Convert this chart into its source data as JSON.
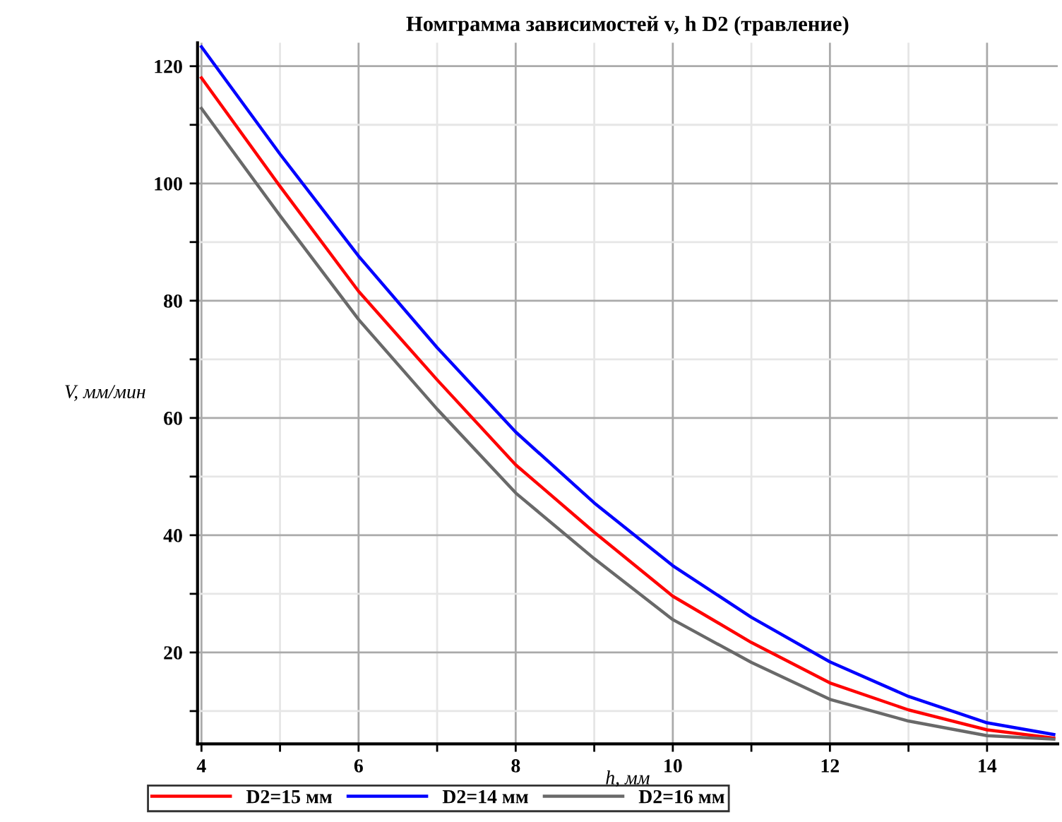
{
  "chart_data": {
    "type": "line",
    "title": "Номграмма зависимостей v, h D2 (травление)",
    "xlabel": "h, мм",
    "ylabel": "V, мм/мин",
    "x": [
      4,
      5,
      6,
      7,
      8,
      9,
      10,
      11,
      12,
      13,
      14,
      14.85
    ],
    "series": [
      {
        "name": "D2=15 мм",
        "color": "#ff0000",
        "values": [
          118,
          99.5,
          81.6,
          66.5,
          52,
          40.5,
          29.6,
          21.7,
          14.8,
          10.2,
          6.8,
          5.4
        ]
      },
      {
        "name": "D2=14 мм",
        "color": "#0000ff",
        "values": [
          123.3,
          105,
          87.6,
          72,
          57.6,
          45.5,
          34.8,
          26,
          18.4,
          12.5,
          8.0,
          6.0
        ]
      },
      {
        "name": "D2=16 мм",
        "color": "#696969",
        "values": [
          112.8,
          94.5,
          76.8,
          61.5,
          47.2,
          36,
          25.6,
          18.3,
          12.0,
          8.3,
          5.8,
          5.2
        ]
      }
    ],
    "xlim": [
      3.95,
      14.9
    ],
    "ylim": [
      4.4,
      124
    ],
    "xticks": [
      4,
      {
        "value": 5,
        "label": null
      },
      6,
      {
        "value": 7,
        "label": null
      },
      8,
      {
        "value": 9,
        "label": null
      },
      10,
      {
        "value": 11,
        "label": null
      },
      12,
      {
        "value": 13,
        "label": null
      },
      14
    ],
    "yticks": [
      {
        "value": 10,
        "label": null
      },
      20,
      {
        "value": 30,
        "label": null
      },
      40,
      {
        "value": 50,
        "label": null
      },
      60,
      {
        "value": 70,
        "label": null
      },
      80,
      {
        "value": 90,
        "label": null
      },
      100,
      {
        "value": 110,
        "label": null
      },
      120
    ],
    "grid": true,
    "legend": "bottom",
    "marker": "none",
    "line_style": "solid"
  }
}
